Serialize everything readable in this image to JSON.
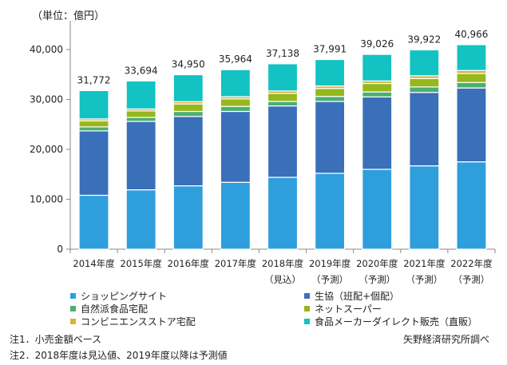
{
  "chart_data": {
    "type": "bar",
    "stacked": true,
    "unit_label": "（単位：億円）",
    "title": "",
    "xlabel": "",
    "ylabel": "",
    "ylim": [
      0,
      40000
    ],
    "yticks": [
      0,
      10000,
      20000,
      30000,
      40000
    ],
    "ytick_labels": [
      "0",
      "10,000",
      "20,000",
      "30,000",
      "40,000"
    ],
    "grid": false,
    "categories": [
      "2014年度",
      "2015年度",
      "2016年度",
      "2017年度",
      "2018年度",
      "2019年度",
      "2020年度",
      "2021年度",
      "2022年度"
    ],
    "category_sublabels": [
      "",
      "",
      "",
      "",
      "（見込）",
      "（予測）",
      "（予測）",
      "（予測）",
      "（予測）"
    ],
    "totals": [
      31772,
      33694,
      34950,
      35964,
      37138,
      37991,
      39026,
      39922,
      40966
    ],
    "total_labels": [
      "31,772",
      "33,694",
      "34,950",
      "35,964",
      "37,138",
      "37,991",
      "39,026",
      "39,922",
      "40,966"
    ],
    "series": [
      {
        "name": "ショッピングサイト",
        "color": "#2e9fdc",
        "values": [
          10800,
          11900,
          12700,
          13400,
          14400,
          15200,
          16000,
          16700,
          17500
        ]
      },
      {
        "name": "生協（班配+個配）",
        "color": "#3a6fba",
        "values": [
          12900,
          13700,
          13900,
          14200,
          14300,
          14400,
          14500,
          14700,
          14800
        ]
      },
      {
        "name": "自然派食品宅配",
        "color": "#4caf70",
        "values": [
          800,
          800,
          1000,
          1000,
          900,
          1000,
          1000,
          1100,
          1100
        ]
      },
      {
        "name": "ネットスーパー",
        "color": "#94b81e",
        "values": [
          1200,
          1300,
          1500,
          1500,
          1600,
          1600,
          1700,
          1700,
          1800
        ]
      },
      {
        "name": "コンビニエンスストア宅配",
        "color": "#d9b23a",
        "values": [
          400,
          400,
          450,
          450,
          500,
          500,
          500,
          550,
          600
        ]
      },
      {
        "name": "食品メーカーダイレクト販売（直販）",
        "color": "#13c2c2",
        "values": [
          5672,
          5594,
          5400,
          5414,
          5438,
          5291,
          5326,
          5172,
          5166
        ]
      }
    ],
    "legend_position": "bottom"
  },
  "notes": {
    "note1": "注1．小売金額ベース",
    "note2": "注2．2018年度は見込値、2019年度以降は予測値",
    "source": "矢野経済研究所調べ"
  }
}
